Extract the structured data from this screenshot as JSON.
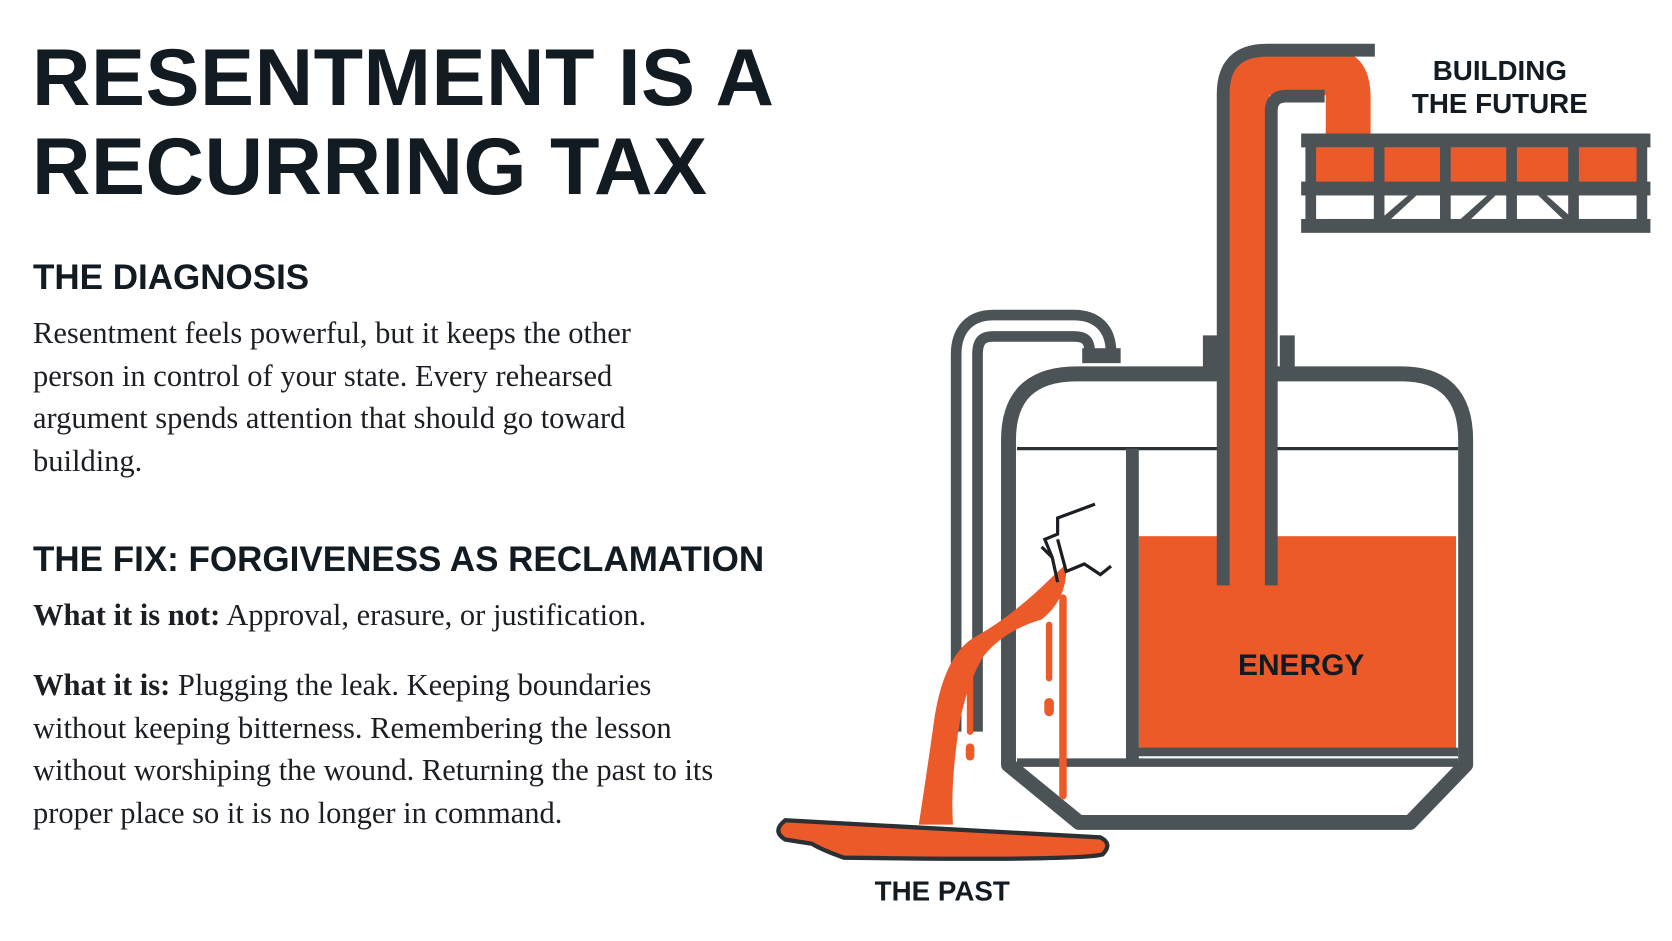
{
  "title": {
    "line1": "RESENTMENT IS A",
    "line2": "RECURRING TAX"
  },
  "diagnosis": {
    "heading": "THE DIAGNOSIS",
    "text": "Resentment feels powerful, but it keeps the other person in control of your state. Every rehearsed argument spends attention that should go toward building."
  },
  "fix": {
    "heading": "THE FIX: FORGIVENESS AS RECLAMATION",
    "not_label": "What it is not:",
    "not_text": " Approval, erasure, or justification.",
    "is_label": "What it is:",
    "is_text": " Plugging the leak. Keeping boundaries without keeping bitterness. Remembering the lesson without worshiping the wound. Returning the past to its proper place so it is no longer in command."
  },
  "diagram": {
    "label_future_line1": "BUILDING",
    "label_future_line2": "THE FUTURE",
    "label_energy": "ENERGY",
    "label_past": "THE PAST",
    "colors": {
      "orange": "#ec5a2a",
      "pipe": "#4b5356",
      "text": "#121a22"
    }
  }
}
